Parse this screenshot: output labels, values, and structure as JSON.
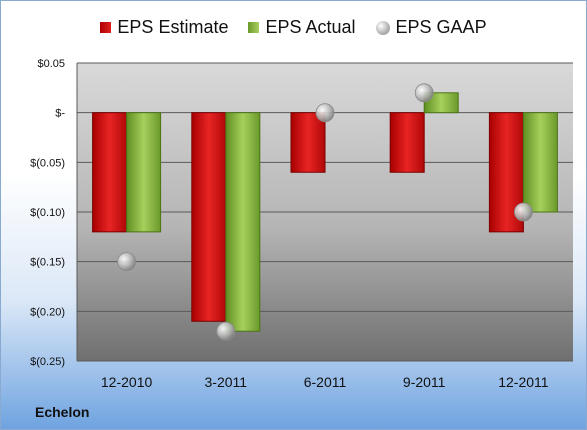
{
  "chart_data": {
    "type": "bar",
    "categories": [
      "12-2010",
      "3-2011",
      "6-2011",
      "9-2011",
      "12-2011"
    ],
    "series": [
      {
        "name": "EPS Estimate",
        "type": "bar",
        "values": [
          -0.12,
          -0.21,
          -0.06,
          -0.06,
          -0.12
        ],
        "color": "#c81010"
      },
      {
        "name": "EPS Actual",
        "type": "bar",
        "values": [
          -0.12,
          -0.22,
          null,
          0.02,
          -0.1
        ],
        "color": "#8cbf45"
      },
      {
        "name": "EPS GAAP",
        "type": "scatter",
        "values": [
          -0.15,
          -0.22,
          0.0,
          0.02,
          -0.1
        ],
        "color": "#b8b8b8"
      }
    ],
    "y_ticks": [
      0.05,
      0,
      -0.05,
      -0.1,
      -0.15,
      -0.2,
      -0.25
    ],
    "y_tick_labels": [
      "$0.05",
      "$-",
      "$(0.05)",
      "$(0.10)",
      "$(0.15)",
      "$(0.20)",
      "$(0.25)"
    ],
    "ylim": [
      -0.25,
      0.05
    ],
    "grid": true,
    "legend_position": "top"
  },
  "footer": {
    "company": "Echelon"
  }
}
